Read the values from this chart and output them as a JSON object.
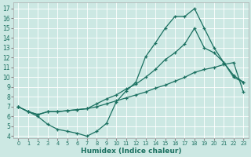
{
  "xlabel": "Humidex (Indice chaleur)",
  "bg_color": "#cce8e3",
  "grid_color": "#b8ddd8",
  "line_color": "#1a7060",
  "xlim": [
    -0.5,
    23.5
  ],
  "ylim": [
    3.8,
    17.6
  ],
  "xticks": [
    0,
    1,
    2,
    3,
    4,
    5,
    6,
    7,
    8,
    9,
    10,
    11,
    12,
    13,
    14,
    15,
    16,
    17,
    18,
    19,
    20,
    21,
    22,
    23
  ],
  "yticks": [
    4,
    5,
    6,
    7,
    8,
    9,
    10,
    11,
    12,
    13,
    14,
    15,
    16,
    17
  ],
  "curve1_x": [
    0,
    1,
    2,
    3,
    4,
    5,
    6,
    7,
    8,
    9,
    10,
    11,
    12,
    13,
    14,
    15,
    16,
    17,
    18,
    19,
    20,
    21,
    22,
    23
  ],
  "curve1_y": [
    7.0,
    6.5,
    6.0,
    5.2,
    4.7,
    4.5,
    4.3,
    4.0,
    4.5,
    5.3,
    7.5,
    8.6,
    9.5,
    12.1,
    13.5,
    15.0,
    16.2,
    16.2,
    17.0,
    15.0,
    13.0,
    11.5,
    10.2,
    9.5
  ],
  "curve2_x": [
    0,
    1,
    2,
    3,
    4,
    5,
    6,
    7,
    8,
    9,
    10,
    11,
    12,
    13,
    14,
    15,
    16,
    17,
    18,
    19,
    20,
    21,
    22,
    23
  ],
  "curve2_y": [
    7.0,
    6.5,
    6.2,
    6.5,
    6.5,
    6.6,
    6.7,
    6.8,
    7.3,
    7.8,
    8.2,
    8.8,
    9.3,
    10.0,
    10.8,
    11.8,
    12.5,
    13.4,
    15.0,
    13.0,
    12.5,
    11.5,
    10.0,
    9.5
  ],
  "curve3_x": [
    0,
    1,
    2,
    3,
    4,
    5,
    6,
    7,
    8,
    9,
    10,
    11,
    12,
    13,
    14,
    15,
    16,
    17,
    18,
    19,
    20,
    21,
    22,
    23
  ],
  "curve3_y": [
    7.0,
    6.5,
    6.2,
    6.5,
    6.5,
    6.6,
    6.7,
    6.8,
    7.0,
    7.3,
    7.6,
    7.9,
    8.2,
    8.5,
    8.9,
    9.2,
    9.6,
    10.0,
    10.5,
    10.8,
    11.0,
    11.3,
    11.5,
    8.5
  ]
}
